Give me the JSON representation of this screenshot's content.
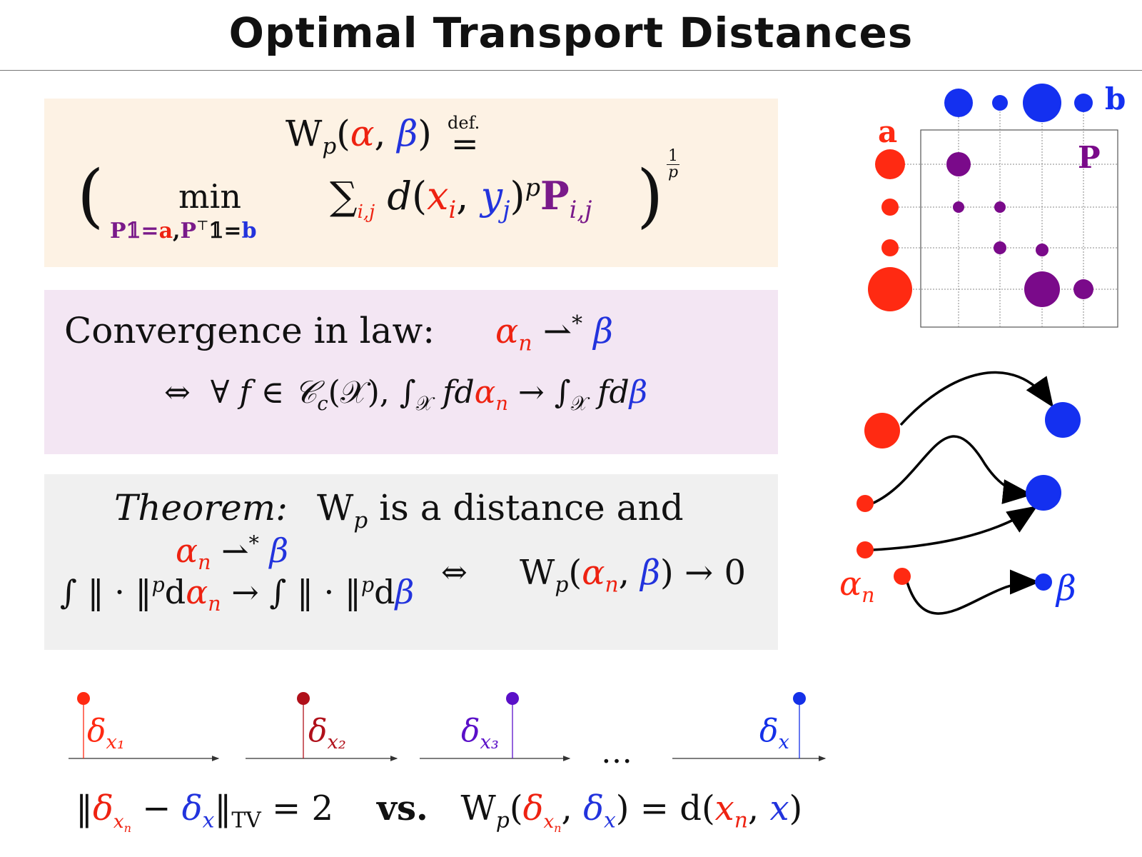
{
  "title": "Optimal Transport Distances",
  "definition": {
    "lhs_W": "W",
    "lhs_p": "p",
    "lhs_alpha": "α",
    "lhs_beta": "β",
    "defeq_label": "def.",
    "min_word": "min",
    "min_constraint": {
      "P": "P𝟙=",
      "a": "a",
      "comma": ",",
      "PT": "P",
      "T": "⊤",
      "one": "𝟙=",
      "b": "b"
    },
    "sum": "∑",
    "sum_index": "i,j",
    "dist_d": "d",
    "x": "x",
    "i": "i",
    "y": "y",
    "j": "j",
    "p_exp": "p",
    "P_bold": "P",
    "Pij": "i,j",
    "outer_exp_num": "1",
    "outer_exp_den": "p"
  },
  "convergence": {
    "label": "Convergence in law:",
    "alpha_n": "α",
    "n": "n",
    "weak_arrow": "⇀",
    "star": "*",
    "beta": "β",
    "equiv": "⇔",
    "forall_clause": "∀ f ∈ 𝒞",
    "c_sub": "c",
    "X_clause": "(𝒳),",
    "integral": "∫",
    "X_sub": "𝒳",
    "fd": "fd",
    "to": "→",
    "fd2": "fd"
  },
  "theorem": {
    "label": "Theorem:",
    "W": "W",
    "p": "p",
    "statement": "is a distance and",
    "alpha_n": "α",
    "n": "n",
    "weak_arrow": "⇀",
    "star": "*",
    "beta": "β",
    "moment_left": "∫ ‖ · ‖",
    "p_exp": "p",
    "d": "d",
    "to": "→",
    "moment_right": "∫ ‖ · ‖",
    "equiv": "⇔",
    "conclusion_tail": ") → 0"
  },
  "diracs": {
    "delta": "δ",
    "subscripts": [
      "x₁",
      "x₂",
      "x₃",
      "x"
    ],
    "ellipsis": "…",
    "colors": [
      "#ff2a12",
      "#b0101a",
      "#5a10c8",
      "#1430e8"
    ]
  },
  "bottom_formula": {
    "tv_left": "‖",
    "delta": "δ",
    "x_n_sub": "x",
    "n": "n",
    "minus": "−",
    "x_sub": "x",
    "tv_right": "‖",
    "tv": "TV",
    "eq_two": "= 2",
    "vs": "vs.",
    "W": "W",
    "p": "p",
    "tail_left": "= d(",
    "xn": "x",
    "comma": ",",
    "x": "x",
    "close": ")"
  },
  "coupling_diagram": {
    "label_a": "a",
    "label_b": "b",
    "label_P": "P",
    "colors": {
      "a": "#ff2a12",
      "b": "#1430f0",
      "P": "#7a0a8a"
    },
    "a_masses": [
      0.35,
      0.12,
      0.12,
      0.95
    ],
    "b_masses": [
      0.35,
      0.12,
      0.62,
      0.12
    ]
  },
  "transport_diagram": {
    "label_alpha": "α",
    "label_alpha_sub": "n",
    "label_beta": "β"
  }
}
